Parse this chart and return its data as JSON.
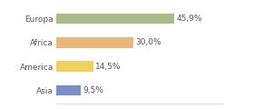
{
  "categories": [
    "Europa",
    "Africa",
    "America",
    "Asia"
  ],
  "values": [
    45.9,
    30.0,
    14.5,
    9.5
  ],
  "labels": [
    "45,9%",
    "30,0%",
    "14,5%",
    "9,5%"
  ],
  "bar_colors": [
    "#a8bc8a",
    "#e8b87a",
    "#f0d060",
    "#7b8ec8"
  ],
  "background_color": "#ffffff",
  "xlim": [
    0,
    65
  ],
  "bar_height": 0.45,
  "label_fontsize": 6.5,
  "category_fontsize": 6.5,
  "label_color": "#555555",
  "spine_color": "#cccccc"
}
